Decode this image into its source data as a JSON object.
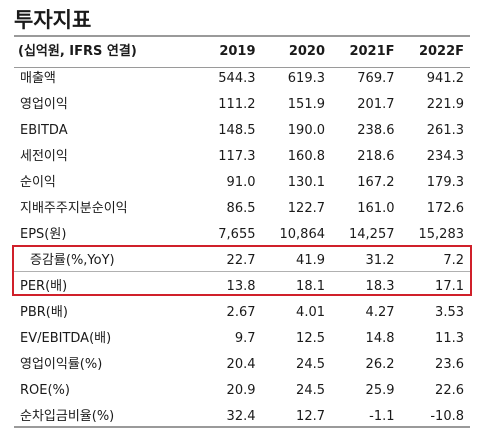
{
  "title": "투자지표",
  "header": {
    "label": "(십억원, IFRS 연결)",
    "years": [
      "2019",
      "2020",
      "2021F",
      "2022F"
    ]
  },
  "rows": [
    {
      "label": "매출액",
      "values": [
        "544.3",
        "619.3",
        "769.7",
        "941.2"
      ]
    },
    {
      "label": "영업이익",
      "values": [
        "111.2",
        "151.9",
        "201.7",
        "221.9"
      ]
    },
    {
      "label": "EBITDA",
      "values": [
        "148.5",
        "190.0",
        "238.6",
        "261.3"
      ]
    },
    {
      "label": "세전이익",
      "values": [
        "117.3",
        "160.8",
        "218.6",
        "234.3"
      ]
    },
    {
      "label": "순이익",
      "values": [
        "91.0",
        "130.1",
        "167.2",
        "179.3"
      ]
    },
    {
      "label": "지배주주지분순이익",
      "values": [
        "86.5",
        "122.7",
        "161.0",
        "172.6"
      ]
    },
    {
      "label": "EPS(원)",
      "values": [
        "7,655",
        "10,864",
        "14,257",
        "15,283"
      ]
    },
    {
      "label": "증감률(%,YoY)",
      "values": [
        "22.7",
        "41.9",
        "31.2",
        "7.2"
      ]
    },
    {
      "label": "PER(배)",
      "values": [
        "13.8",
        "18.1",
        "18.3",
        "17.1"
      ]
    },
    {
      "label": "PBR(배)",
      "values": [
        "2.67",
        "4.01",
        "4.27",
        "3.53"
      ]
    },
    {
      "label": "EV/EBITDA(배)",
      "values": [
        "9.7",
        "12.5",
        "14.8",
        "11.3"
      ]
    },
    {
      "label": "영업이익률(%)",
      "values": [
        "20.4",
        "24.5",
        "26.2",
        "23.6"
      ]
    },
    {
      "label": "ROE(%)",
      "values": [
        "20.9",
        "24.5",
        "25.9",
        "22.6"
      ]
    },
    {
      "label": "순차입금비율(%)",
      "values": [
        "32.4",
        "12.7",
        "-1.1",
        "-10.8"
      ]
    }
  ],
  "highlight_color": "#d0202a"
}
